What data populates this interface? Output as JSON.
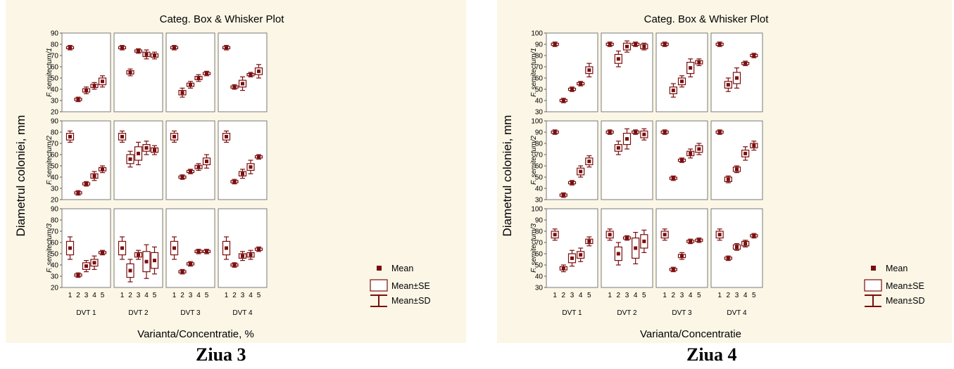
{
  "chart_data": [
    {
      "type": "box",
      "title": "Categ. Box & Whisker Plot",
      "xlabel": "Varianta/Concentratie, %",
      "ylabel": "Diametrul coloniei, mm",
      "ylim": [
        20,
        90
      ],
      "yticks": [
        20,
        30,
        40,
        50,
        60,
        70,
        80,
        90
      ],
      "categories": [
        "1",
        "2",
        "3",
        "4",
        "5"
      ],
      "groups": [
        "DVT 1",
        "DVT 2",
        "DVT 3",
        "DVT 4"
      ],
      "rows": [
        {
          "name": "F. semitectum/1",
          "panels": [
            [
              [
                77,
                1,
                2
              ],
              [
                31,
                1,
                2
              ],
              [
                39,
                1.5,
                3
              ],
              [
                43,
                1.5,
                3
              ],
              [
                47,
                3,
                5
              ]
            ],
            [
              [
                77,
                1,
                2
              ],
              [
                55,
                1.5,
                3
              ],
              [
                74,
                1,
                2
              ],
              [
                71,
                2,
                4
              ],
              [
                70,
                1.5,
                3
              ]
            ],
            [
              [
                77,
                1,
                2
              ],
              [
                37,
                2,
                4
              ],
              [
                44,
                1.5,
                3
              ],
              [
                50,
                1.5,
                3
              ],
              [
                54,
                1,
                2
              ]
            ],
            [
              [
                77,
                1,
                2
              ],
              [
                42,
                1,
                2
              ],
              [
                45,
                3,
                6
              ],
              [
                53,
                1,
                2
              ],
              [
                56,
                3,
                6
              ]
            ]
          ]
        },
        {
          "name": "F. semitectum/2",
          "panels": [
            [
              [
                76,
                3,
                5
              ],
              [
                26,
                1,
                2
              ],
              [
                34,
                1,
                2
              ],
              [
                41,
                2,
                4
              ],
              [
                47,
                1.5,
                3
              ]
            ],
            [
              [
                76,
                3,
                5
              ],
              [
                56,
                4,
                7
              ],
              [
                61,
                6,
                10
              ],
              [
                66,
                3,
                6
              ],
              [
                64,
                2,
                4
              ]
            ],
            [
              [
                76,
                3,
                5
              ],
              [
                40,
                1,
                2
              ],
              [
                45,
                1,
                2
              ],
              [
                49,
                1.5,
                3
              ],
              [
                54,
                3,
                6
              ]
            ],
            [
              [
                76,
                3,
                5
              ],
              [
                36,
                1,
                2
              ],
              [
                43,
                2,
                4
              ],
              [
                49,
                3,
                6
              ],
              [
                58,
                1,
                2
              ]
            ]
          ]
        },
        {
          "name": "F. semitectum/3",
          "panels": [
            [
              [
                55,
                6,
                10
              ],
              [
                31,
                1,
                2
              ],
              [
                39,
                3,
                5
              ],
              [
                42,
                3,
                6
              ],
              [
                51,
                1,
                2
              ]
            ],
            [
              [
                55,
                6,
                10
              ],
              [
                35,
                6,
                10
              ],
              [
                49,
                2,
                4
              ],
              [
                43,
                9,
                15
              ],
              [
                44,
                7,
                12
              ]
            ],
            [
              [
                55,
                6,
                10
              ],
              [
                34,
                1,
                2
              ],
              [
                41,
                1,
                2
              ],
              [
                52,
                1,
                2
              ],
              [
                52,
                1,
                2
              ]
            ],
            [
              [
                55,
                6,
                10
              ],
              [
                40,
                1,
                2
              ],
              [
                48,
                2,
                4
              ],
              [
                49,
                2,
                4
              ],
              [
                54,
                1,
                2
              ]
            ]
          ]
        }
      ]
    },
    {
      "type": "box",
      "title": "Categ. Box & Whisker Plot",
      "xlabel": "Varianta/Concentratie",
      "ylabel": "Diametrul coloniei, mm",
      "ylim": [
        30,
        100
      ],
      "yticks": [
        30,
        40,
        50,
        60,
        70,
        80,
        90,
        100
      ],
      "categories": [
        "1",
        "2",
        "3",
        "4",
        "5"
      ],
      "groups": [
        "DVT 1",
        "DVT 2",
        "DVT 3",
        "DVT 4"
      ],
      "rows": [
        {
          "name": "F. semitectum/1",
          "panels": [
            [
              [
                90,
                1,
                2
              ],
              [
                40,
                1,
                2
              ],
              [
                50,
                1,
                2
              ],
              [
                55,
                1,
                2
              ],
              [
                67,
                3,
                6
              ]
            ],
            [
              [
                90,
                1,
                2
              ],
              [
                77,
                4,
                7
              ],
              [
                88,
                3,
                5
              ],
              [
                90,
                1,
                2
              ],
              [
                88,
                2,
                3
              ]
            ],
            [
              [
                90,
                1,
                2
              ],
              [
                49,
                3,
                6
              ],
              [
                57,
                3,
                5
              ],
              [
                69,
                5,
                8
              ],
              [
                74,
                1.5,
                3
              ]
            ],
            [
              [
                90,
                1,
                2
              ],
              [
                54,
                3,
                6
              ],
              [
                60,
                5,
                9
              ],
              [
                73,
                1,
                2
              ],
              [
                80,
                1,
                2
              ]
            ]
          ]
        },
        {
          "name": "F. semitectum/2",
          "panels": [
            [
              [
                90,
                1,
                2
              ],
              [
                34,
                1,
                2
              ],
              [
                45,
                1,
                2
              ],
              [
                55,
                3,
                5
              ],
              [
                64,
                3,
                5
              ]
            ],
            [
              [
                90,
                1,
                2
              ],
              [
                76,
                3,
                6
              ],
              [
                84,
                5,
                9
              ],
              [
                90,
                1,
                2
              ],
              [
                88,
                3,
                5
              ]
            ],
            [
              [
                90,
                1,
                2
              ],
              [
                49,
                1,
                2
              ],
              [
                65,
                1,
                2
              ],
              [
                71,
                2,
                4
              ],
              [
                75,
                3,
                5
              ]
            ],
            [
              [
                90,
                1,
                2
              ],
              [
                48,
                2,
                3
              ],
              [
                57,
                2,
                3
              ],
              [
                71,
                3,
                6
              ],
              [
                78,
                2,
                4
              ]
            ]
          ]
        },
        {
          "name": "F. semitectum/3",
          "panels": [
            [
              [
                77,
                3,
                5
              ],
              [
                47,
                1.5,
                3
              ],
              [
                56,
                4,
                7
              ],
              [
                59,
                3,
                6
              ],
              [
                71,
                2,
                4
              ]
            ],
            [
              [
                77,
                3,
                5
              ],
              [
                60,
                6,
                10
              ],
              [
                74,
                1,
                2
              ],
              [
                65,
                9,
                14
              ],
              [
                71,
                6,
                10
              ]
            ],
            [
              [
                77,
                3,
                5
              ],
              [
                46,
                1,
                2
              ],
              [
                58,
                1.5,
                3
              ],
              [
                71,
                1,
                2
              ],
              [
                72,
                1,
                2
              ]
            ],
            [
              [
                77,
                3,
                5
              ],
              [
                56,
                1,
                2
              ],
              [
                66,
                2,
                3
              ],
              [
                69,
                2,
                3
              ],
              [
                76,
                1,
                2
              ]
            ]
          ]
        }
      ]
    }
  ],
  "legend": {
    "mean": "Mean",
    "se": "Mean±SE",
    "sd": "Mean±SD"
  },
  "colors": {
    "mark": "#7a0d0d",
    "background": "#fbf6e6",
    "grid": "#7a7a7a"
  },
  "captions": [
    "Ziua 3",
    "Ziua 4"
  ]
}
